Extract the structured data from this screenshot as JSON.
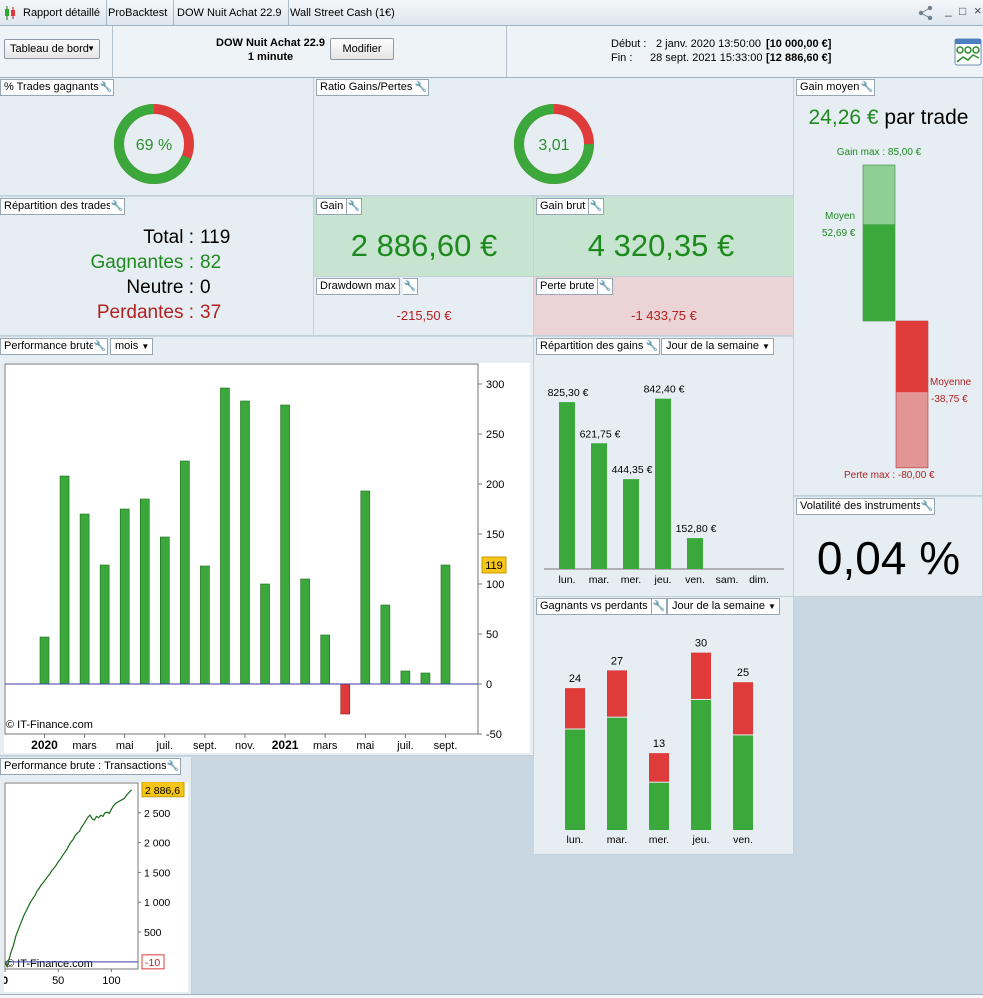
{
  "topbar": {
    "tabs": [
      "Rapport détaillé",
      "ProBacktest",
      "DOW Nuit Achat 22.9",
      "Wall Street Cash (1€)"
    ],
    "win_controls": [
      "_",
      "□",
      "×"
    ]
  },
  "header": {
    "dashboard_select": "Tableau de bord",
    "strategy_name": "DOW Nuit Achat 22.9",
    "timeframe": "1 minute",
    "modify_label": "Modifier",
    "start_label": "Début :",
    "start_date": "2 janv. 2020 13:50:00",
    "start_value": "[10 000,00 €]",
    "end_label": "Fin :",
    "end_date": "28 sept. 2021 15:33:00",
    "end_value": "[12 886,60 €]"
  },
  "win_trades": {
    "title": "% Trades gagnants",
    "label": "69 %",
    "fraction": 0.69
  },
  "ratio": {
    "title": "Ratio Gains/Pertes",
    "label": "3,01",
    "fraction": 0.75
  },
  "repartition": {
    "title": "Répartition des trades",
    "total_label": "Total :",
    "total": "119",
    "win_label": "Gagnantes :",
    "win": "82",
    "neutral_label": "Neutre :",
    "neutral": "0",
    "lose_label": "Perdantes :",
    "lose": "37"
  },
  "gain": {
    "title": "Gain",
    "value": "2 886,60 €"
  },
  "gain_brut": {
    "title": "Gain brut",
    "value": "4 320,35 €"
  },
  "drawdown": {
    "title": "Drawdown max",
    "value": "-215,50 €"
  },
  "perte_brute": {
    "title": "Perte brute",
    "value": "-1 433,75 €"
  },
  "gain_moyen": {
    "title": "Gain moyen",
    "value": "24,26 €",
    "suffix": "par trade",
    "gain_max_label": "Gain max : 85,00 €",
    "moyen_label": "Moyen",
    "moyen_value": "52,69 €",
    "moyenne_label": "Moyenne",
    "moyenne_value": "-38,75 €",
    "perte_max_label": "Perte max : -80,00 €",
    "gain_max": 85.0,
    "gain_avg": 52.69,
    "loss_avg": -38.75,
    "loss_max": -80.0
  },
  "volatility": {
    "title": "Volatilité des instruments",
    "value": "0,04 %"
  },
  "perf_brute": {
    "title": "Performance brute",
    "period_select": "mois",
    "watermark": "© IT-Finance.com",
    "current_badge": "119"
  },
  "perf_tx": {
    "title": "Performance brute : Transactions",
    "watermark": "© IT-Finance.com",
    "badge_top": "2 886,6",
    "badge_bottom": "-10"
  },
  "rep_gains": {
    "title": "Répartition des gains",
    "select": "Jour de la semaine"
  },
  "gv": {
    "title": "Gagnants vs perdants",
    "select": "Jour de la semaine"
  },
  "chart_data": [
    {
      "type": "bar",
      "id": "monthly_performance",
      "title": "Performance brute",
      "categories": [
        "janv. 2020",
        "févr. 2020",
        "mars 2020",
        "avr. 2020",
        "mai 2020",
        "juin 2020",
        "juil. 2020",
        "août 2020",
        "sept. 2020",
        "oct. 2020",
        "nov. 2020",
        "déc. 2020",
        "janv. 2021",
        "févr. 2021",
        "mars 2021",
        "avr. 2021",
        "mai 2021",
        "juin 2021",
        "juil. 2021",
        "août 2021",
        "sept. 2021"
      ],
      "values": [
        47,
        208,
        170,
        119,
        175,
        185,
        147,
        223,
        118,
        296,
        283,
        100,
        279,
        105,
        49,
        -30,
        193,
        79,
        13,
        11,
        119
      ],
      "x_tick_labels": [
        "2020",
        "mars",
        "mai",
        "juil.",
        "sept.",
        "nov.",
        "2021",
        "mars",
        "mai",
        "juil.",
        "sept."
      ],
      "x_tick_index": [
        0,
        2,
        4,
        6,
        8,
        10,
        12,
        14,
        16,
        18,
        20
      ],
      "x_tick_bold": [
        true,
        false,
        false,
        false,
        false,
        false,
        true,
        false,
        false,
        false,
        false
      ],
      "y_ticks": [
        -50,
        0,
        50,
        100,
        150,
        200,
        250,
        300
      ],
      "ylim": [
        -50,
        320
      ],
      "colors": {
        "positive": "#3aa83a",
        "negative": "#e03b3b",
        "zero_line": "#3c3caa"
      }
    },
    {
      "type": "line",
      "id": "equity_per_transaction",
      "title": "Performance brute : Transactions",
      "x_ticks": [
        0,
        50,
        100
      ],
      "y_ticks": [
        500,
        1000,
        1500,
        2000,
        2500
      ],
      "y_tick_labels": [
        "500",
        "1 000",
        "1 500",
        "2 000",
        "2 500"
      ],
      "xlim": [
        0,
        125
      ],
      "ylim": [
        -120,
        3000
      ],
      "x": [
        0,
        2,
        4,
        6,
        8,
        10,
        12,
        14,
        16,
        18,
        20,
        22,
        24,
        26,
        28,
        30,
        32,
        34,
        36,
        38,
        40,
        42,
        44,
        46,
        48,
        50,
        52,
        54,
        56,
        58,
        60,
        62,
        64,
        66,
        68,
        70,
        72,
        74,
        76,
        78,
        80,
        82,
        84,
        86,
        88,
        90,
        92,
        94,
        96,
        98,
        100,
        102,
        104,
        106,
        108,
        110,
        112,
        114,
        116,
        118,
        119
      ],
      "y": [
        -10,
        -80,
        60,
        180,
        280,
        420,
        520,
        610,
        700,
        790,
        860,
        930,
        1000,
        1060,
        1110,
        1180,
        1230,
        1290,
        1330,
        1380,
        1430,
        1470,
        1530,
        1570,
        1620,
        1680,
        1720,
        1780,
        1830,
        1880,
        1950,
        2010,
        2050,
        2120,
        2160,
        2190,
        2260,
        2310,
        2370,
        2430,
        2460,
        2400,
        2380,
        2440,
        2420,
        2460,
        2440,
        2500,
        2510,
        2490,
        2560,
        2620,
        2660,
        2680,
        2700,
        2720,
        2740,
        2790,
        2830,
        2870,
        2886.6
      ],
      "colors": {
        "line": "#1a6b1a",
        "baseline": "#3c3caa"
      }
    },
    {
      "type": "bar",
      "id": "gains_by_weekday",
      "title": "Répartition des gains",
      "categories": [
        "lun.",
        "mar.",
        "mer.",
        "jeu.",
        "ven.",
        "sam.",
        "dim."
      ],
      "values": [
        825.3,
        621.75,
        444.35,
        842.4,
        152.8,
        0,
        0
      ],
      "labels": [
        "825,30 €",
        "621,75 €",
        "444,35 €",
        "842,40 €",
        "152,80 €",
        "",
        ""
      ],
      "ylim": [
        0,
        900
      ],
      "color": "#3aa83a"
    },
    {
      "type": "bar",
      "id": "winners_vs_losers",
      "title": "Gagnants vs perdants",
      "categories": [
        "lun.",
        "mar.",
        "mer.",
        "jeu.",
        "ven."
      ],
      "totals": [
        24,
        27,
        13,
        30,
        25
      ],
      "series": [
        {
          "name": "Gagnants",
          "values": [
            17,
            19,
            8,
            22,
            16
          ],
          "color": "#3aa83a"
        },
        {
          "name": "Perdants",
          "values": [
            7,
            8,
            5,
            8,
            9
          ],
          "color": "#e03b3b"
        }
      ],
      "ylim": [
        0,
        34
      ]
    }
  ]
}
